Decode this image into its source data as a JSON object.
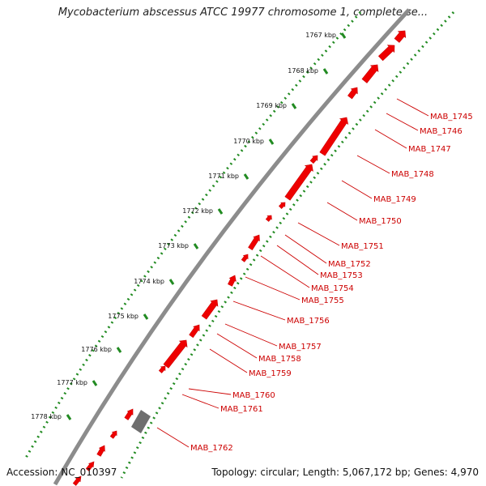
{
  "title": "Mycobacterium abscessus ATCC 19977 chromosome 1, complete se...",
  "footer": {
    "accession": "Accession: NC_010397",
    "summary": "Topology: circular; Length: 5,067,172 bp; Genes: 4,970"
  },
  "colors": {
    "gene": "#ee0000",
    "gene_dark": "#cc0000",
    "backbone": "#8c8c8c",
    "tick": "#228b22",
    "label": "#cc0000",
    "other_feature": "#6e6e6e"
  },
  "scale_ticks": [
    {
      "label": "1767 kbp"
    },
    {
      "label": "1768 kbp"
    },
    {
      "label": "1769 kbp"
    },
    {
      "label": "1770 kbp"
    },
    {
      "label": "1771 kbp"
    },
    {
      "label": "1772 kbp"
    },
    {
      "label": "1773 kbp"
    },
    {
      "label": "1774 kbp"
    },
    {
      "label": "1775 kbp"
    },
    {
      "label": "1776 kbp"
    },
    {
      "label": "1777 kbp"
    },
    {
      "label": "1778 kbp"
    }
  ],
  "gene_labels": [
    "MAB_1745",
    "MAB_1746",
    "MAB_1747",
    "MAB_1748",
    "MAB_1749",
    "MAB_1750",
    "MAB_1751",
    "MAB_1752",
    "MAB_1753",
    "MAB_1754",
    "MAB_1755",
    "MAB_1756",
    "MAB_1757",
    "MAB_1758",
    "MAB_1759",
    "MAB_1760",
    "MAB_1761",
    "MAB_1762"
  ]
}
